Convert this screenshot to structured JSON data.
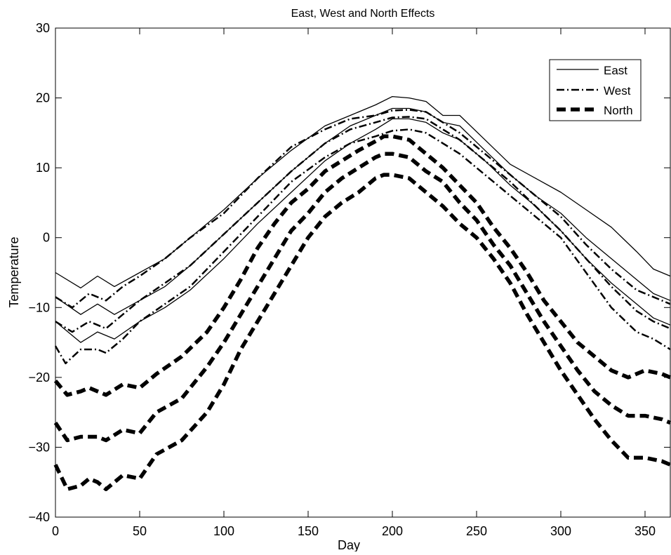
{
  "chart_data": {
    "type": "line",
    "title": "East, West and North Effects",
    "xlabel": "Day",
    "ylabel": "Temperature",
    "xlim": [
      0,
      365
    ],
    "ylim": [
      -40,
      30
    ],
    "xticks": [
      0,
      50,
      100,
      150,
      200,
      250,
      300,
      350
    ],
    "yticks": [
      -40,
      -30,
      -20,
      -10,
      0,
      10,
      20,
      30
    ],
    "xtick_labels": [
      "0",
      "50",
      "100",
      "150",
      "200",
      "250",
      "300",
      "350"
    ],
    "ytick_labels": [
      "−40",
      "−30",
      "−20",
      "−10",
      "0",
      "10",
      "20",
      "30"
    ],
    "grid": false,
    "legend": {
      "placement": "top-right",
      "entries": [
        "East",
        "West",
        "North"
      ]
    },
    "series": [
      {
        "name": "East",
        "style": "solid",
        "color": "#000000",
        "x": [
          0,
          15,
          25,
          35,
          50,
          65,
          80,
          100,
          120,
          140,
          160,
          175,
          190,
          200,
          210,
          220,
          230,
          240,
          255,
          270,
          285,
          300,
          315,
          330,
          345,
          355,
          365
        ],
        "y": [
          -5,
          -7.2,
          -5.5,
          -7,
          -5,
          -3,
          0,
          4,
          8.5,
          12.5,
          16,
          17.5,
          19,
          20.2,
          20,
          19.5,
          17.5,
          17.5,
          14,
          10.5,
          8.5,
          6.5,
          4,
          1.5,
          -2,
          -4.5,
          -5.5
        ]
      },
      {
        "name": "",
        "style": "solid",
        "color": "#000000",
        "x": [
          0,
          15,
          25,
          35,
          50,
          65,
          80,
          100,
          120,
          140,
          160,
          175,
          190,
          200,
          210,
          220,
          230,
          240,
          255,
          270,
          285,
          300,
          315,
          330,
          345,
          355,
          365
        ],
        "y": [
          -8.5,
          -11,
          -9.5,
          -11,
          -9,
          -7,
          -4,
          0.5,
          5,
          9.5,
          13.5,
          16,
          17.5,
          18.5,
          18.5,
          18,
          16.5,
          16,
          12.5,
          9,
          6,
          3.5,
          0,
          -3,
          -6,
          -8,
          -9
        ]
      },
      {
        "name": "",
        "style": "solid",
        "color": "#000000",
        "x": [
          0,
          15,
          25,
          35,
          50,
          65,
          80,
          100,
          120,
          140,
          160,
          175,
          190,
          200,
          210,
          220,
          230,
          240,
          255,
          270,
          285,
          300,
          315,
          330,
          345,
          355,
          365
        ],
        "y": [
          -12,
          -15,
          -13.5,
          -14.5,
          -12,
          -10,
          -7.5,
          -3,
          2,
          6.5,
          11,
          13.5,
          15.5,
          17,
          17,
          16.5,
          15,
          14,
          11,
          7.5,
          4.5,
          1,
          -3,
          -6.5,
          -9.5,
          -11.5,
          -12.5
        ]
      },
      {
        "name": "West",
        "style": "dashdot",
        "color": "#000000",
        "x": [
          0,
          10,
          20,
          30,
          40,
          50,
          65,
          80,
          100,
          120,
          140,
          160,
          175,
          190,
          200,
          210,
          220,
          230,
          240,
          255,
          270,
          285,
          300,
          315,
          330,
          345,
          355,
          365
        ],
        "y": [
          -8.5,
          -10,
          -8,
          -9,
          -7,
          -5.5,
          -3,
          0,
          3.5,
          8.5,
          13,
          15.5,
          17,
          17.5,
          18.2,
          18.3,
          18,
          16.5,
          15,
          12,
          9,
          6,
          3,
          -1,
          -4.5,
          -7.5,
          -8.5,
          -9.5
        ]
      },
      {
        "name": "",
        "style": "dashdot",
        "color": "#000000",
        "x": [
          0,
          10,
          20,
          30,
          40,
          50,
          65,
          80,
          100,
          120,
          140,
          160,
          175,
          190,
          200,
          210,
          220,
          230,
          240,
          255,
          270,
          285,
          300,
          315,
          330,
          345,
          355,
          365
        ],
        "y": [
          -12,
          -13.5,
          -12,
          -13,
          -11,
          -9,
          -6.5,
          -4,
          0.5,
          5,
          9.5,
          13.5,
          15.5,
          16.5,
          17.2,
          17.3,
          17,
          15.5,
          14,
          11,
          8,
          4.5,
          1,
          -3,
          -7,
          -10.5,
          -12,
          -13
        ]
      },
      {
        "name": "",
        "style": "dashdot",
        "color": "#000000",
        "x": [
          0,
          6,
          15,
          25,
          30,
          40,
          50,
          65,
          80,
          100,
          120,
          140,
          160,
          175,
          190,
          200,
          210,
          220,
          230,
          240,
          255,
          270,
          285,
          300,
          315,
          330,
          345,
          355,
          365
        ],
        "y": [
          -15.5,
          -18,
          -16,
          -16,
          -16.5,
          -14.5,
          -12,
          -9.5,
          -7,
          -2,
          3,
          8,
          11.5,
          13.5,
          14.5,
          15.3,
          15.5,
          15,
          13.5,
          12,
          9,
          6,
          3,
          0,
          -5,
          -10,
          -13.5,
          -14.5,
          -16
        ]
      },
      {
        "name": "North",
        "style": "dashed",
        "color": "#000000",
        "x": [
          0,
          7,
          15,
          20,
          25,
          30,
          40,
          50,
          60,
          75,
          90,
          100,
          110,
          120,
          130,
          140,
          150,
          160,
          170,
          180,
          190,
          195,
          200,
          210,
          220,
          230,
          240,
          250,
          260,
          270,
          280,
          290,
          300,
          310,
          320,
          330,
          340,
          350,
          360,
          365
        ],
        "y": [
          -20.5,
          -22.5,
          -22,
          -21.5,
          -22,
          -22.5,
          -21,
          -21.5,
          -19.5,
          -17,
          -13.5,
          -10,
          -6,
          -1.5,
          2,
          5,
          7,
          9.5,
          11,
          12.5,
          13.8,
          14.5,
          14.5,
          14,
          12,
          10,
          7.5,
          5,
          1.5,
          -1.5,
          -5,
          -9,
          -12,
          -15,
          -17,
          -19,
          -20,
          -19,
          -19.5,
          -20
        ]
      },
      {
        "name": "",
        "style": "dashed",
        "color": "#000000",
        "x": [
          0,
          7,
          15,
          20,
          25,
          30,
          40,
          50,
          60,
          75,
          90,
          100,
          110,
          120,
          130,
          140,
          150,
          160,
          170,
          180,
          190,
          195,
          200,
          210,
          220,
          230,
          240,
          250,
          260,
          270,
          280,
          290,
          300,
          310,
          320,
          330,
          340,
          350,
          360,
          365
        ],
        "y": [
          -26.5,
          -29,
          -28.5,
          -28.5,
          -28.5,
          -29,
          -27.5,
          -28,
          -25,
          -23,
          -18.5,
          -15,
          -11,
          -7,
          -3,
          1,
          3.5,
          6.5,
          8.5,
          10,
          11.5,
          12,
          12,
          11.5,
          9.5,
          8,
          5,
          2.5,
          -1,
          -4,
          -8,
          -12,
          -15.5,
          -19,
          -22,
          -24,
          -25.5,
          -25.5,
          -26,
          -26.5
        ]
      },
      {
        "name": "",
        "style": "dashed",
        "color": "#000000",
        "x": [
          0,
          7,
          15,
          20,
          25,
          30,
          40,
          50,
          60,
          75,
          90,
          100,
          110,
          120,
          130,
          140,
          150,
          160,
          170,
          180,
          190,
          195,
          200,
          210,
          220,
          230,
          240,
          250,
          260,
          270,
          280,
          290,
          300,
          310,
          320,
          330,
          340,
          350,
          360,
          365
        ],
        "y": [
          -32.5,
          -36,
          -35.5,
          -34.5,
          -35,
          -36,
          -34,
          -34.5,
          -31,
          -29,
          -25,
          -21,
          -16,
          -12,
          -8,
          -4,
          0,
          3,
          5,
          6.5,
          8.5,
          9,
          9,
          8.5,
          6.5,
          4.5,
          2,
          0,
          -3,
          -6.5,
          -11,
          -15,
          -19,
          -22.5,
          -26,
          -29,
          -31.5,
          -31.5,
          -32,
          -32.5
        ]
      }
    ]
  }
}
